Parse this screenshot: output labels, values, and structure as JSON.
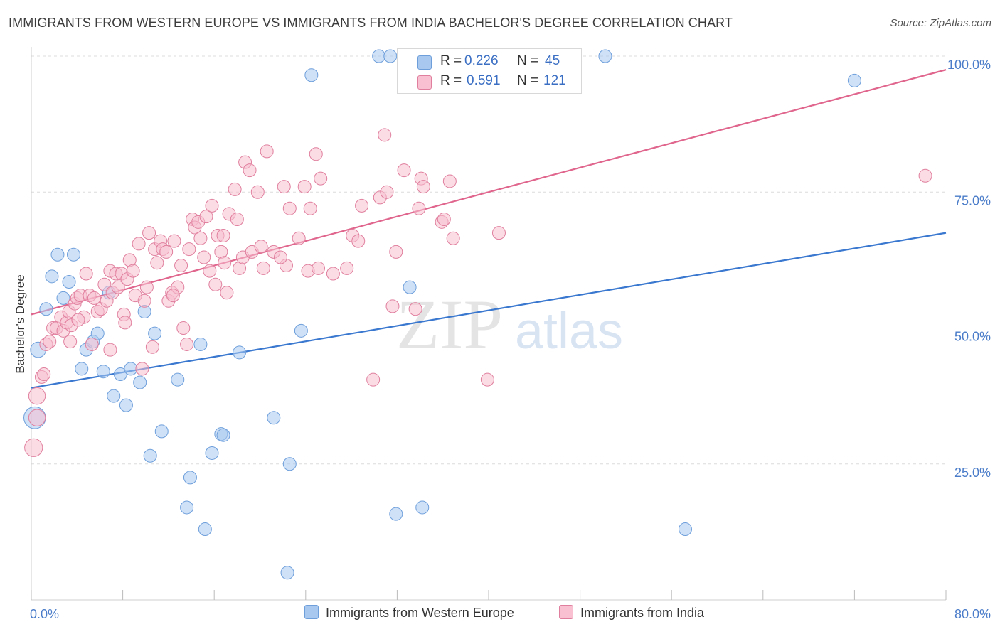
{
  "title": "IMMIGRANTS FROM WESTERN EUROPE VS IMMIGRANTS FROM INDIA BACHELOR'S DEGREE CORRELATION CHART",
  "source": "Source: ZipAtlas.com",
  "watermark": {
    "zip": "ZIP",
    "atlas": "atlas"
  },
  "legend": {
    "rows": [
      {
        "r_label": "R = ",
        "r_value": "0.226",
        "n_label": "N = ",
        "n_value": "45",
        "color": "#a8c8f0",
        "border": "#6e9fdb"
      },
      {
        "r_label": "R = ",
        "r_value": "0.591",
        "n_label": "N = ",
        "n_value": "121",
        "color": "#f8c0d0",
        "border": "#e07f9e"
      }
    ]
  },
  "bottom_legend": [
    {
      "label": "Immigrants from Western Europe",
      "color": "#a8c8f0",
      "border": "#6e9fdb"
    },
    {
      "label": "Immigrants from India",
      "color": "#f8c0d0",
      "border": "#e07f9e"
    }
  ],
  "chart_data": {
    "type": "scatter",
    "title": "IMMIGRANTS FROM WESTERN EUROPE VS IMMIGRANTS FROM INDIA BACHELOR'S DEGREE CORRELATION CHART",
    "xlabel": "",
    "ylabel": "Bachelor's Degree",
    "xlim": [
      0,
      80
    ],
    "ylim": [
      0,
      100
    ],
    "x_tick_labels": [
      "0.0%",
      "80.0%"
    ],
    "y_ticks": [
      25,
      50,
      75,
      100
    ],
    "y_tick_labels": [
      "25.0%",
      "50.0%",
      "75.0%",
      "100.0%"
    ],
    "grid": true,
    "series": [
      {
        "name": "Immigrants from Western Europe",
        "color": "#a8c8f0",
        "stroke": "#6e9fdb",
        "line_color": "#3a78d0",
        "trend": [
          [
            0,
            39.0
          ],
          [
            80,
            67.5
          ]
        ],
        "points": [
          [
            0.3,
            33.5,
            1.7
          ],
          [
            0.6,
            46,
            1.2
          ],
          [
            1.3,
            53.5,
            1
          ],
          [
            1.8,
            59.5,
            1
          ],
          [
            2.3,
            63.5,
            1
          ],
          [
            2.8,
            55.5,
            1
          ],
          [
            3.3,
            58.5,
            1
          ],
          [
            3.7,
            63.5,
            1
          ],
          [
            4.4,
            42.5,
            1
          ],
          [
            4.8,
            46,
            1
          ],
          [
            5.4,
            47.5,
            1
          ],
          [
            5.8,
            49,
            1
          ],
          [
            6.3,
            42,
            1
          ],
          [
            6.8,
            56.5,
            1
          ],
          [
            7.2,
            37.5,
            1
          ],
          [
            7.8,
            41.5,
            1
          ],
          [
            8.3,
            35.8,
            1
          ],
          [
            8.7,
            42.5,
            1
          ],
          [
            9.5,
            40,
            1
          ],
          [
            9.9,
            53,
            1
          ],
          [
            10.4,
            26.5,
            1
          ],
          [
            10.8,
            49,
            1
          ],
          [
            11.4,
            31,
            1
          ],
          [
            12.8,
            40.5,
            1
          ],
          [
            13.6,
            17,
            1
          ],
          [
            13.9,
            22.5,
            1
          ],
          [
            14.8,
            47,
            1
          ],
          [
            15.2,
            13,
            1
          ],
          [
            15.8,
            27,
            1
          ],
          [
            16.6,
            30.5,
            1
          ],
          [
            16.8,
            30.3,
            1
          ],
          [
            18.2,
            45.5,
            1
          ],
          [
            21.2,
            33.5,
            1
          ],
          [
            22.4,
            5,
            1
          ],
          [
            22.6,
            25,
            1
          ],
          [
            23.6,
            49.5,
            1
          ],
          [
            24.5,
            96.5,
            1
          ],
          [
            30.4,
            100,
            1
          ],
          [
            31.4,
            100,
            1
          ],
          [
            31.9,
            15.8,
            1
          ],
          [
            33.1,
            57.5,
            1
          ],
          [
            34.2,
            17,
            1
          ],
          [
            50.2,
            100,
            1
          ],
          [
            57.2,
            13,
            1
          ],
          [
            72,
            95.5,
            1
          ]
        ]
      },
      {
        "name": "Immigrants from India",
        "color": "#f8c0d0",
        "stroke": "#e07f9e",
        "line_color": "#e0668e",
        "trend": [
          [
            0,
            52.5
          ],
          [
            80,
            97.5
          ]
        ],
        "points": [
          [
            0.2,
            28,
            1.4
          ],
          [
            0.5,
            37.5,
            1.3
          ],
          [
            0.5,
            33.5,
            1.3
          ],
          [
            0.9,
            41,
            1
          ],
          [
            1.1,
            41.5,
            1
          ],
          [
            1.3,
            47,
            1
          ],
          [
            1.6,
            47.5,
            1
          ],
          [
            1.9,
            50,
            1
          ],
          [
            2.2,
            50,
            1
          ],
          [
            2.6,
            52,
            1
          ],
          [
            2.8,
            49.5,
            1
          ],
          [
            3.1,
            51,
            1
          ],
          [
            3.3,
            53,
            1
          ],
          [
            3.5,
            50.5,
            1
          ],
          [
            3.8,
            54.5,
            1
          ],
          [
            4,
            55.5,
            1
          ],
          [
            4.3,
            56,
            1
          ],
          [
            4.6,
            52,
            1
          ],
          [
            4.8,
            60,
            1
          ],
          [
            5.1,
            56,
            1
          ],
          [
            5.3,
            47,
            1
          ],
          [
            5.5,
            55.5,
            1
          ],
          [
            5.8,
            53,
            1
          ],
          [
            6.1,
            53.5,
            1
          ],
          [
            6.4,
            58,
            1
          ],
          [
            6.6,
            55,
            1
          ],
          [
            6.9,
            60.5,
            1
          ],
          [
            7.1,
            56.5,
            1
          ],
          [
            7.4,
            60,
            1
          ],
          [
            7.6,
            57.5,
            1
          ],
          [
            7.9,
            60,
            1
          ],
          [
            8.1,
            52.5,
            1
          ],
          [
            8.4,
            59,
            1
          ],
          [
            8.6,
            62.5,
            1
          ],
          [
            8.9,
            60.5,
            1
          ],
          [
            9.1,
            56,
            1
          ],
          [
            9.4,
            65.5,
            1
          ],
          [
            9.7,
            42.5,
            1
          ],
          [
            9.9,
            55,
            1
          ],
          [
            10.1,
            57.5,
            1
          ],
          [
            10.3,
            67.5,
            1
          ],
          [
            10.6,
            46.5,
            1
          ],
          [
            10.8,
            64.5,
            1
          ],
          [
            11,
            62,
            1
          ],
          [
            11.3,
            66,
            1
          ],
          [
            11.5,
            64.5,
            1
          ],
          [
            11.8,
            64,
            1
          ],
          [
            12,
            55,
            1
          ],
          [
            12.3,
            56.5,
            1
          ],
          [
            12.5,
            66,
            1
          ],
          [
            12.8,
            57.5,
            1
          ],
          [
            13.1,
            61.5,
            1
          ],
          [
            13.3,
            50,
            1
          ],
          [
            13.6,
            47,
            1
          ],
          [
            13.8,
            64.5,
            1
          ],
          [
            14.1,
            70,
            1
          ],
          [
            14.3,
            68.5,
            1
          ],
          [
            14.6,
            69.5,
            1
          ],
          [
            14.8,
            66.5,
            1
          ],
          [
            15.1,
            63,
            1
          ],
          [
            15.3,
            70.5,
            1
          ],
          [
            15.6,
            60.5,
            1
          ],
          [
            15.8,
            72.5,
            1
          ],
          [
            16.1,
            58,
            1
          ],
          [
            16.3,
            67,
            1
          ],
          [
            16.6,
            64,
            1
          ],
          [
            16.8,
            67,
            1
          ],
          [
            17.1,
            56.5,
            1
          ],
          [
            17.3,
            71,
            1
          ],
          [
            17.8,
            75.5,
            1
          ],
          [
            18,
            70,
            1
          ],
          [
            18.2,
            61,
            1
          ],
          [
            18.5,
            63,
            1
          ],
          [
            18.7,
            80.5,
            1
          ],
          [
            19.1,
            79,
            1
          ],
          [
            19.3,
            64,
            1
          ],
          [
            19.8,
            75,
            1
          ],
          [
            20.1,
            65,
            1
          ],
          [
            20.3,
            61,
            1
          ],
          [
            20.6,
            82.5,
            1
          ],
          [
            21.2,
            64,
            1
          ],
          [
            22.1,
            76,
            1
          ],
          [
            22.3,
            61.5,
            1
          ],
          [
            22.6,
            72,
            1
          ],
          [
            23.4,
            66.5,
            1
          ],
          [
            23.9,
            76,
            1
          ],
          [
            24.2,
            60.5,
            1
          ],
          [
            24.4,
            72,
            1
          ],
          [
            25.1,
            61,
            1
          ],
          [
            24.9,
            82,
            1
          ],
          [
            25.3,
            77.5,
            1
          ],
          [
            28.1,
            67,
            1
          ],
          [
            28.6,
            66,
            1
          ],
          [
            28.9,
            72.5,
            1
          ],
          [
            29.9,
            40.5,
            1
          ],
          [
            30.5,
            74,
            1
          ],
          [
            30.9,
            85.5,
            1
          ],
          [
            31.1,
            75,
            1
          ],
          [
            31.6,
            54,
            1
          ],
          [
            31.9,
            64,
            1
          ],
          [
            32.6,
            79,
            1
          ],
          [
            33.6,
            53.5,
            1
          ],
          [
            33.9,
            72,
            1
          ],
          [
            34.1,
            77.5,
            1
          ],
          [
            34.3,
            76,
            1
          ],
          [
            35.9,
            69.5,
            1
          ],
          [
            36.1,
            70,
            1
          ],
          [
            36.6,
            77,
            1
          ],
          [
            36.9,
            66.5,
            1
          ],
          [
            39.9,
            40.5,
            1
          ],
          [
            40.9,
            67.5,
            1
          ],
          [
            78.2,
            78,
            1
          ],
          [
            3.4,
            47.5,
            1
          ],
          [
            4.1,
            51.5,
            1
          ],
          [
            6.9,
            46,
            1
          ],
          [
            8.2,
            51,
            1
          ],
          [
            12.4,
            56,
            1
          ],
          [
            16.9,
            62,
            1
          ],
          [
            21.8,
            63,
            1
          ],
          [
            26.4,
            60,
            1
          ],
          [
            27.6,
            61,
            1
          ]
        ]
      }
    ]
  }
}
